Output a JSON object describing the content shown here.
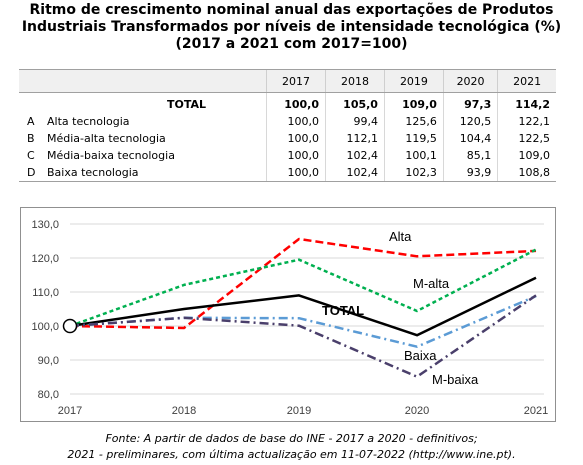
{
  "title": {
    "line1": "Ritmo de crescimento nominal anual das exportações de Produtos",
    "line2": "Industriais Transformados por níveis de intensidade tecnológica (%)",
    "line3": "(2017 a 2021 com 2017=100)"
  },
  "table": {
    "years": [
      "2017",
      "2018",
      "2019",
      "2020",
      "2021"
    ],
    "rows": [
      {
        "letter": "",
        "name": "TOTAL",
        "values": [
          "100,0",
          "105,0",
          "109,0",
          "97,3",
          "114,2"
        ]
      },
      {
        "letter": "A",
        "name": "Alta tecnologia",
        "values": [
          "100,0",
          "99,4",
          "125,6",
          "120,5",
          "122,1"
        ]
      },
      {
        "letter": "B",
        "name": "Média-alta tecnologia",
        "values": [
          "100,0",
          "112,1",
          "119,5",
          "104,4",
          "122,5"
        ]
      },
      {
        "letter": "C",
        "name": "Média-baixa tecnologia",
        "values": [
          "100,0",
          "102,4",
          "100,1",
          "85,1",
          "109,0"
        ]
      },
      {
        "letter": "D",
        "name": "Baixa tecnologia",
        "values": [
          "100,0",
          "102,4",
          "102,3",
          "93,9",
          "108,8"
        ]
      }
    ]
  },
  "chart_data": {
    "type": "line",
    "x": [
      "2017",
      "2018",
      "2019",
      "2020",
      "2021"
    ],
    "ylim": [
      80,
      130
    ],
    "yticks": [
      "80,0",
      "90,0",
      "100,0",
      "110,0",
      "120,0",
      "130,0"
    ],
    "grid": "horizontal",
    "series": [
      {
        "name": "Alta",
        "values": [
          100.0,
          99.4,
          125.6,
          120.5,
          122.1
        ],
        "color": "#ff0000",
        "style": "dashed"
      },
      {
        "name": "M-alta",
        "values": [
          100.0,
          112.1,
          119.5,
          104.4,
          122.5
        ],
        "color": "#00b050",
        "style": "dotted"
      },
      {
        "name": "TOTAL",
        "values": [
          100.0,
          105.0,
          109.0,
          97.3,
          114.2
        ],
        "color": "#000000",
        "style": "solid"
      },
      {
        "name": "Baixa",
        "values": [
          100.0,
          102.4,
          102.3,
          93.9,
          108.8
        ],
        "color": "#5b9bd5",
        "style": "dash-dot"
      },
      {
        "name": "M-baixa",
        "values": [
          100.0,
          102.4,
          100.1,
          85.1,
          109.0
        ],
        "color": "#4a3f6b",
        "style": "dash-dot"
      }
    ]
  },
  "source": {
    "line1": "Fonte: A partir de dados de base do INE  - 2017 a 2020 - definitivos;",
    "line2": "2021 - preliminares, com última actualização em 11-07-2022  (http://www.ine.pt)."
  }
}
